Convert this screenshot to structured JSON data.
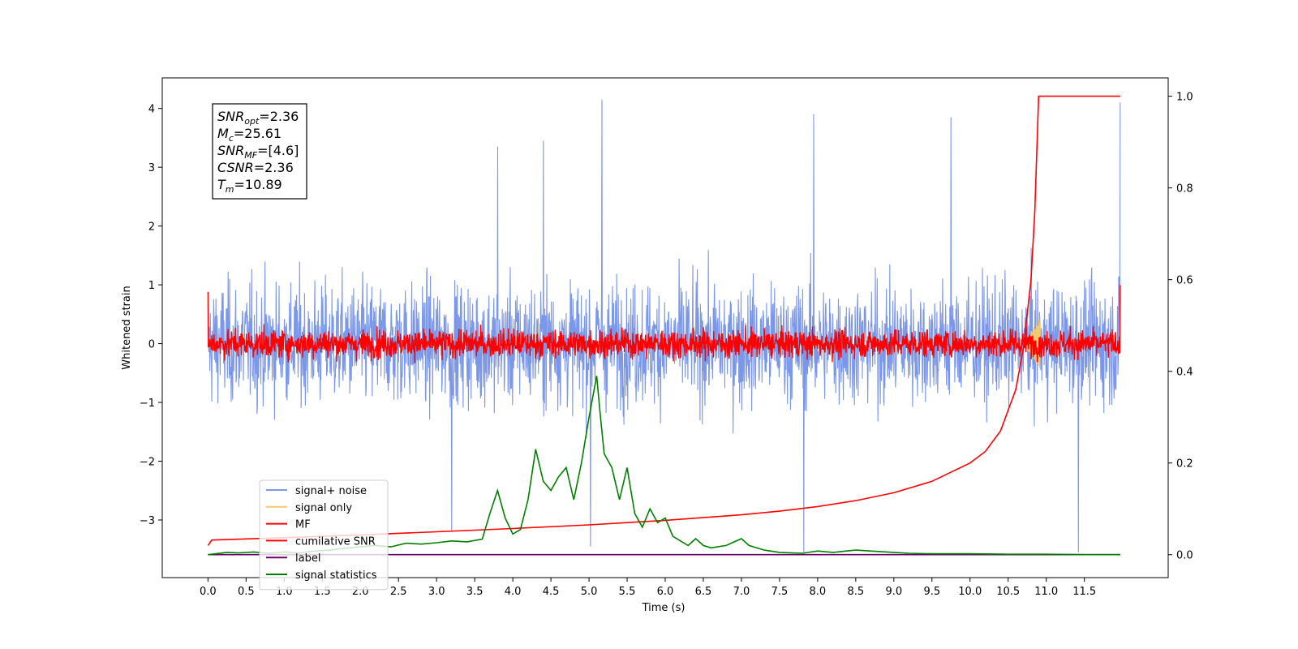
{
  "chart_data": {
    "type": "line",
    "xlabel": "Time (s)",
    "ylabel": "Whitened strain",
    "xlim": [
      -0.6,
      12.6
    ],
    "ylim_left": [
      -3.98,
      4.52
    ],
    "ylim_right": [
      -0.05,
      1.04
    ],
    "x_ticks": [
      0.0,
      0.5,
      1.0,
      1.5,
      2.0,
      2.5,
      3.0,
      3.5,
      4.0,
      4.5,
      5.0,
      5.5,
      6.0,
      6.5,
      7.0,
      7.5,
      8.0,
      8.5,
      9.0,
      9.5,
      10.0,
      10.5,
      11.0,
      11.5
    ],
    "x_tick_labels": [
      "0.0",
      "0.5",
      "1.0",
      "1.5",
      "2.0",
      "2.5",
      "3.0",
      "3.5",
      "4.0",
      "4.5",
      "5.0",
      "5.5",
      "6.0",
      "6.5",
      "7.0",
      "7.5",
      "8.0",
      "8.5",
      "9.0",
      "9.5",
      "10.0",
      "10.5",
      "11.0",
      "11.5"
    ],
    "y_ticks_left": [
      -3,
      -2,
      -1,
      0,
      1,
      2,
      3,
      4
    ],
    "y_tick_labels_left": [
      "−3",
      "−2",
      "−1",
      "0",
      "1",
      "2",
      "3",
      "4"
    ],
    "y_ticks_right": [
      0.0,
      0.2,
      0.4,
      0.6,
      0.8,
      1.0
    ],
    "y_tick_labels_right": [
      "0.0",
      "0.2",
      "0.4",
      "0.6",
      "0.8",
      "1.0"
    ],
    "grid": false,
    "legend_position": "lower-left",
    "info_box": {
      "lines": [
        {
          "symbol": "SNR",
          "sub": "opt",
          "value": "=2.36"
        },
        {
          "symbol": "M",
          "sub": "c",
          "value": "=25.61"
        },
        {
          "symbol": "SNR",
          "sub": "MF",
          "value": "=[4.6]"
        },
        {
          "symbol": "CSNR",
          "sub": "",
          "value": "=2.36"
        },
        {
          "symbol": "T",
          "sub": "m",
          "value": "=10.89"
        }
      ]
    },
    "series": [
      {
        "name": "signal+ noise",
        "axis": "left",
        "color": "#7b97e8",
        "style": "noise",
        "x_range": [
          0.0,
          11.97
        ],
        "center": 0.0,
        "amplitude": 1.3,
        "notable_spikes": [
          {
            "x": 5.17,
            "y": 4.15
          },
          {
            "x": 7.95,
            "y": 3.9
          },
          {
            "x": 9.75,
            "y": 3.85
          },
          {
            "x": 11.97,
            "y": 4.1
          },
          {
            "x": 4.4,
            "y": 3.45
          },
          {
            "x": 3.8,
            "y": 3.35
          },
          {
            "x": 5.02,
            "y": -3.45
          },
          {
            "x": 7.82,
            "y": -3.55
          },
          {
            "x": 11.42,
            "y": -3.55
          },
          {
            "x": 3.2,
            "y": -3.2
          }
        ]
      },
      {
        "name": "signal only",
        "axis": "left",
        "color": "#f7c96b",
        "style": "chirp",
        "x_range": [
          10.7,
          10.92
        ],
        "values_note": ""
      },
      {
        "name": "MF",
        "axis": "left",
        "color": "#ff0000",
        "style": "noise",
        "x_range": [
          0.0,
          11.97
        ],
        "center": 0.0,
        "amplitude": 0.3,
        "notable_spikes": [
          {
            "x": 0.0,
            "y": 0.88
          },
          {
            "x": 11.97,
            "y": 1.0
          }
        ]
      },
      {
        "name": "cumilative SNR",
        "axis": "right",
        "color": "#ff0000",
        "x": [
          0.0,
          0.05,
          1.0,
          2.0,
          3.0,
          4.0,
          5.0,
          6.0,
          7.0,
          7.5,
          8.0,
          8.5,
          9.0,
          9.5,
          10.0,
          10.2,
          10.4,
          10.6,
          10.7,
          10.8,
          10.85,
          10.9,
          11.0,
          11.5,
          11.97
        ],
        "y": [
          0.02,
          0.032,
          0.037,
          0.043,
          0.05,
          0.057,
          0.065,
          0.075,
          0.087,
          0.095,
          0.105,
          0.118,
          0.135,
          0.16,
          0.2,
          0.225,
          0.27,
          0.36,
          0.45,
          0.6,
          0.75,
          1.0,
          1.0,
          1.0,
          1.0
        ]
      },
      {
        "name": "label",
        "axis": "right",
        "color": "#6a006a",
        "x": [
          0.0,
          11.97
        ],
        "y": [
          0.0,
          0.0
        ]
      },
      {
        "name": "signal statistics",
        "axis": "right",
        "color": "#008000",
        "x": [
          0.0,
          0.25,
          0.4,
          0.6,
          0.8,
          1.0,
          1.2,
          1.4,
          1.6,
          1.8,
          2.0,
          2.2,
          2.4,
          2.6,
          2.8,
          3.0,
          3.2,
          3.4,
          3.6,
          3.7,
          3.8,
          3.9,
          4.0,
          4.1,
          4.2,
          4.3,
          4.4,
          4.5,
          4.6,
          4.7,
          4.8,
          4.9,
          5.0,
          5.1,
          5.15,
          5.2,
          5.3,
          5.4,
          5.5,
          5.55,
          5.6,
          5.7,
          5.8,
          5.9,
          6.0,
          6.1,
          6.2,
          6.3,
          6.4,
          6.5,
          6.6,
          6.8,
          7.0,
          7.1,
          7.3,
          7.5,
          7.8,
          8.0,
          8.2,
          8.5,
          8.8,
          9.0,
          9.2,
          9.5,
          10.0,
          10.5,
          11.0,
          11.5,
          11.97
        ],
        "y": [
          0.0,
          0.005,
          0.004,
          0.006,
          0.003,
          0.006,
          0.004,
          0.008,
          0.01,
          0.014,
          0.017,
          0.02,
          0.017,
          0.025,
          0.023,
          0.026,
          0.03,
          0.028,
          0.034,
          0.09,
          0.14,
          0.08,
          0.045,
          0.055,
          0.12,
          0.23,
          0.16,
          0.14,
          0.17,
          0.19,
          0.12,
          0.2,
          0.3,
          0.39,
          0.3,
          0.22,
          0.19,
          0.12,
          0.19,
          0.14,
          0.09,
          0.06,
          0.1,
          0.07,
          0.08,
          0.04,
          0.03,
          0.02,
          0.035,
          0.02,
          0.015,
          0.02,
          0.035,
          0.02,
          0.01,
          0.005,
          0.003,
          0.008,
          0.005,
          0.01,
          0.007,
          0.005,
          0.003,
          0.002,
          0.002,
          0.001,
          0.001,
          0.0,
          0.0
        ]
      }
    ],
    "legend": [
      {
        "label": "signal+ noise",
        "color": "#7b97e8"
      },
      {
        "label": "signal only",
        "color": "#f7c96b"
      },
      {
        "label": "MF",
        "color": "#ff0000"
      },
      {
        "label": "cumilative SNR",
        "color": "#ff0000"
      },
      {
        "label": "label",
        "color": "#6a006a"
      },
      {
        "label": "signal statistics",
        "color": "#008000"
      }
    ]
  }
}
